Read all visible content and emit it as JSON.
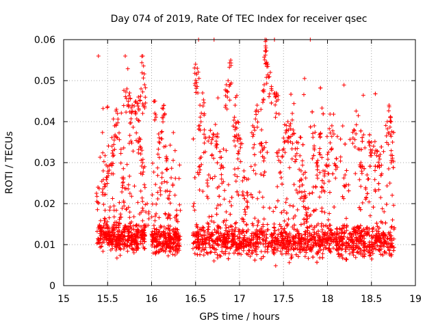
{
  "chart_data": {
    "type": "scatter",
    "title": "Day 074 of 2019, Rate Of TEC Index for receiver qsec",
    "xlabel": "GPS time / hours",
    "ylabel": "ROTI / TECUs",
    "xlim": [
      15,
      19
    ],
    "ylim": [
      0,
      0.06
    ],
    "x_ticks": [
      15,
      15.5,
      16,
      16.5,
      17,
      17.5,
      18,
      18.5,
      19
    ],
    "x_tick_labels": [
      "15",
      "15.5",
      "16",
      "16.5",
      "17",
      "17.5",
      "18",
      "18.5",
      "19"
    ],
    "y_ticks": [
      0,
      0.01,
      0.02,
      0.03,
      0.04,
      0.05,
      0.06
    ],
    "y_tick_labels": [
      "0",
      "0.01",
      "0.02",
      "0.03",
      "0.04",
      "0.05",
      "0.06"
    ],
    "grid": true,
    "marker": "+",
    "color": "#ff0000",
    "series": [
      {
        "name": "ROTI",
        "segments": [
          {
            "start": 15.38,
            "end": 15.93,
            "base": 0.012,
            "spread": 0.006,
            "peak_max": 0.056
          },
          {
            "start": 16.0,
            "end": 16.33,
            "base": 0.011,
            "spread": 0.006,
            "peak_max": 0.045
          },
          {
            "start": 16.47,
            "end": 18.76,
            "base": 0.011,
            "spread": 0.007,
            "peak_max": 0.06
          }
        ],
        "points": [
          [
            15.39,
            0.024
          ],
          [
            15.45,
            0.028
          ],
          [
            15.5,
            0.029
          ],
          [
            15.55,
            0.034
          ],
          [
            15.58,
            0.039
          ],
          [
            15.6,
            0.043
          ],
          [
            15.68,
            0.026
          ],
          [
            15.72,
            0.048
          ],
          [
            15.75,
            0.047
          ],
          [
            15.78,
            0.044
          ],
          [
            15.82,
            0.045
          ],
          [
            15.85,
            0.046
          ],
          [
            15.88,
            0.048
          ],
          [
            15.9,
            0.056
          ],
          [
            15.92,
            0.049
          ],
          [
            15.86,
            0.036
          ],
          [
            15.89,
            0.033
          ],
          [
            15.95,
            0.02
          ],
          [
            16.04,
            0.045
          ],
          [
            16.08,
            0.037
          ],
          [
            16.12,
            0.041
          ],
          [
            16.14,
            0.044
          ],
          [
            16.16,
            0.034
          ],
          [
            16.2,
            0.022
          ],
          [
            16.28,
            0.017
          ],
          [
            16.5,
            0.054
          ],
          [
            16.52,
            0.053
          ],
          [
            16.55,
            0.044
          ],
          [
            16.58,
            0.047
          ],
          [
            16.6,
            0.038
          ],
          [
            16.55,
            0.031
          ],
          [
            16.65,
            0.027
          ],
          [
            16.7,
            0.037
          ],
          [
            16.75,
            0.037
          ],
          [
            16.8,
            0.029
          ],
          [
            16.85,
            0.049
          ],
          [
            16.87,
            0.05
          ],
          [
            16.9,
            0.055
          ],
          [
            16.95,
            0.044
          ],
          [
            16.98,
            0.04
          ],
          [
            17.0,
            0.036
          ],
          [
            17.05,
            0.028
          ],
          [
            17.1,
            0.026
          ],
          [
            17.15,
            0.039
          ],
          [
            17.2,
            0.044
          ],
          [
            17.25,
            0.038
          ],
          [
            17.28,
            0.049
          ],
          [
            17.29,
            0.06
          ],
          [
            17.3,
            0.058
          ],
          [
            17.32,
            0.054
          ],
          [
            17.35,
            0.052
          ],
          [
            17.4,
            0.047
          ],
          [
            17.42,
            0.047
          ],
          [
            17.45,
            0.033
          ],
          [
            17.5,
            0.036
          ],
          [
            17.55,
            0.04
          ],
          [
            17.6,
            0.042
          ],
          [
            17.65,
            0.035
          ],
          [
            17.7,
            0.026
          ],
          [
            17.75,
            0.022
          ],
          [
            17.85,
            0.039
          ],
          [
            17.88,
            0.03
          ],
          [
            17.92,
            0.037
          ],
          [
            17.95,
            0.028
          ],
          [
            18.0,
            0.032
          ],
          [
            18.05,
            0.039
          ],
          [
            18.1,
            0.031
          ],
          [
            18.2,
            0.027
          ],
          [
            18.3,
            0.038
          ],
          [
            18.38,
            0.03
          ],
          [
            18.45,
            0.027
          ],
          [
            18.5,
            0.035
          ],
          [
            18.55,
            0.033
          ],
          [
            18.6,
            0.032
          ],
          [
            18.68,
            0.04
          ],
          [
            18.7,
            0.044
          ],
          [
            18.72,
            0.041
          ],
          [
            18.74,
            0.035
          ]
        ]
      }
    ]
  }
}
